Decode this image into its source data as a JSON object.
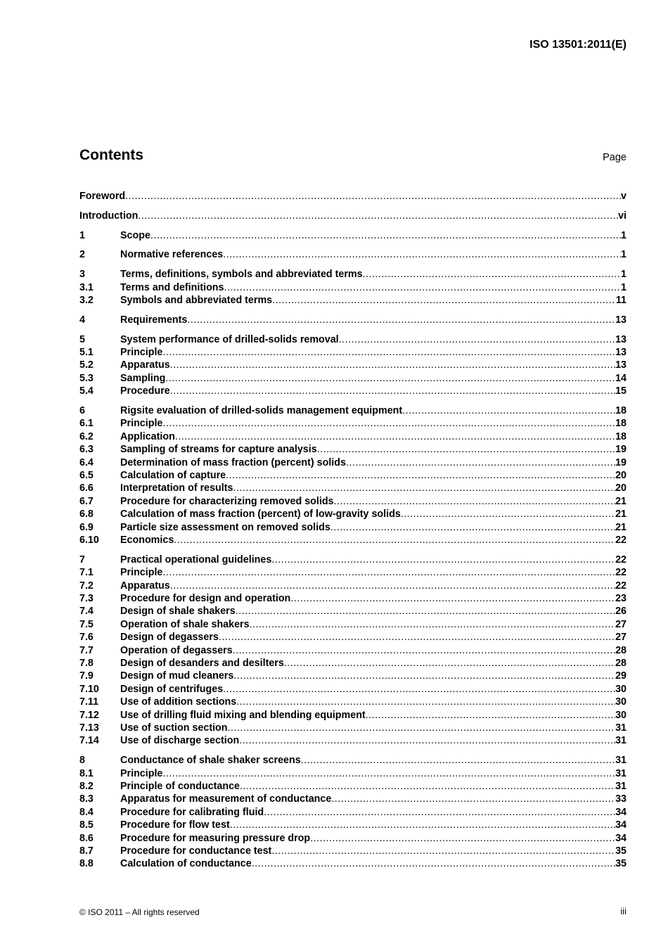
{
  "header": {
    "standard": "ISO 13501:2011(E)"
  },
  "toc": {
    "title": "Contents",
    "page_label": "Page",
    "groups": [
      [
        {
          "num": "",
          "title": "Foreword",
          "page": "v"
        }
      ],
      [
        {
          "num": "",
          "title": "Introduction",
          "page": "vi"
        }
      ],
      [
        {
          "num": "1",
          "title": "Scope",
          "page": "1"
        }
      ],
      [
        {
          "num": "2",
          "title": "Normative references",
          "page": "1"
        }
      ],
      [
        {
          "num": "3",
          "title": "Terms, definitions, symbols and abbreviated terms",
          "page": "1"
        },
        {
          "num": "3.1",
          "title": "Terms and definitions",
          "page": "1"
        },
        {
          "num": "3.2",
          "title": "Symbols and abbreviated terms",
          "page": "11"
        }
      ],
      [
        {
          "num": "4",
          "title": "Requirements",
          "page": "13"
        }
      ],
      [
        {
          "num": "5",
          "title": "System performance of drilled-solids removal",
          "page": "13"
        },
        {
          "num": "5.1",
          "title": "Principle",
          "page": "13"
        },
        {
          "num": "5.2",
          "title": "Apparatus",
          "page": "13"
        },
        {
          "num": "5.3",
          "title": "Sampling",
          "page": "14"
        },
        {
          "num": "5.4",
          "title": "Procedure",
          "page": "15"
        }
      ],
      [
        {
          "num": "6",
          "title": "Rigsite evaluation of drilled-solids management equipment",
          "page": "18"
        },
        {
          "num": "6.1",
          "title": "Principle",
          "page": "18"
        },
        {
          "num": "6.2",
          "title": "Application",
          "page": "18"
        },
        {
          "num": "6.3",
          "title": "Sampling of streams for capture analysis",
          "page": "19"
        },
        {
          "num": "6.4",
          "title": "Determination of mass fraction (percent) solids",
          "page": "19"
        },
        {
          "num": "6.5",
          "title": "Calculation of capture",
          "page": "20"
        },
        {
          "num": "6.6",
          "title": "Interpretation of results",
          "page": "20"
        },
        {
          "num": "6.7",
          "title": "Procedure for characterizing removed solids",
          "page": "21"
        },
        {
          "num": "6.8",
          "title": "Calculation of mass fraction (percent) of low-gravity solids",
          "page": "21"
        },
        {
          "num": "6.9",
          "title": "Particle size assessment on removed solids",
          "page": "21"
        },
        {
          "num": "6.10",
          "title": "Economics",
          "page": "22"
        }
      ],
      [
        {
          "num": "7",
          "title": "Practical operational guidelines",
          "page": "22"
        },
        {
          "num": "7.1",
          "title": "Principle",
          "page": "22"
        },
        {
          "num": "7.2",
          "title": "Apparatus",
          "page": "22"
        },
        {
          "num": "7.3",
          "title": "Procedure for design and operation",
          "page": "23"
        },
        {
          "num": "7.4",
          "title": "Design of shale shakers",
          "page": "26"
        },
        {
          "num": "7.5",
          "title": "Operation of shale shakers",
          "page": "27"
        },
        {
          "num": "7.6",
          "title": "Design of degassers",
          "page": "27"
        },
        {
          "num": "7.7",
          "title": "Operation of degassers",
          "page": "28"
        },
        {
          "num": "7.8",
          "title": "Design of desanders and desilters",
          "page": "28"
        },
        {
          "num": "7.9",
          "title": "Design of mud cleaners",
          "page": "29"
        },
        {
          "num": "7.10",
          "title": "Design of centrifuges",
          "page": "30"
        },
        {
          "num": "7.11",
          "title": "Use of addition sections",
          "page": "30"
        },
        {
          "num": "7.12",
          "title": "Use of drilling fluid mixing and blending equipment",
          "page": "30"
        },
        {
          "num": "7.13",
          "title": "Use of suction section",
          "page": "31"
        },
        {
          "num": "7.14",
          "title": "Use of discharge section",
          "page": "31"
        }
      ],
      [
        {
          "num": "8",
          "title": "Conductance of shale shaker screens",
          "page": "31"
        },
        {
          "num": "8.1",
          "title": "Principle",
          "page": "31"
        },
        {
          "num": "8.2",
          "title": "Principle of conductance",
          "page": "31"
        },
        {
          "num": "8.3",
          "title": "Apparatus for measurement of conductance",
          "page": "33"
        },
        {
          "num": "8.4",
          "title": "Procedure for calibrating fluid",
          "page": "34"
        },
        {
          "num": "8.5",
          "title": "Procedure for flow test",
          "page": "34"
        },
        {
          "num": "8.6",
          "title": "Procedure for measuring pressure drop",
          "page": "34"
        },
        {
          "num": "8.7",
          "title": "Procedure for conductance test",
          "page": "35"
        },
        {
          "num": "8.8",
          "title": "Calculation of conductance",
          "page": "35"
        }
      ]
    ]
  },
  "footer": {
    "copyright": "© ISO 2011 – All rights reserved",
    "page": "iii"
  }
}
